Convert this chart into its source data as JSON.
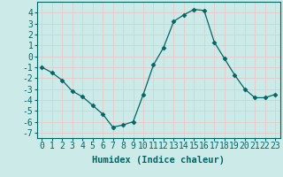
{
  "x": [
    0,
    1,
    2,
    3,
    4,
    5,
    6,
    7,
    8,
    9,
    10,
    11,
    12,
    13,
    14,
    15,
    16,
    17,
    18,
    19,
    20,
    21,
    22,
    23
  ],
  "y": [
    -1.0,
    -1.5,
    -2.2,
    -3.2,
    -3.7,
    -4.5,
    -5.3,
    -6.5,
    -6.3,
    -6.0,
    -3.5,
    -0.8,
    0.8,
    3.2,
    3.8,
    4.3,
    4.2,
    1.3,
    -0.2,
    -1.7,
    -3.0,
    -3.8,
    -3.8,
    -3.5
  ],
  "line_color": "#006666",
  "marker": "D",
  "marker_size": 2.5,
  "bg_color": "#cceae7",
  "grid_color": "#e8c8c8",
  "xlabel": "Humidex (Indice chaleur)",
  "xlabel_fontsize": 7.5,
  "tick_fontsize": 7,
  "xlim": [
    -0.5,
    23.5
  ],
  "ylim": [
    -7.5,
    5.0
  ],
  "yticks": [
    -7,
    -6,
    -5,
    -4,
    -3,
    -2,
    -1,
    0,
    1,
    2,
    3,
    4
  ],
  "xticks": [
    0,
    1,
    2,
    3,
    4,
    5,
    6,
    7,
    8,
    9,
    10,
    11,
    12,
    13,
    14,
    15,
    16,
    17,
    18,
    19,
    20,
    21,
    22,
    23
  ]
}
